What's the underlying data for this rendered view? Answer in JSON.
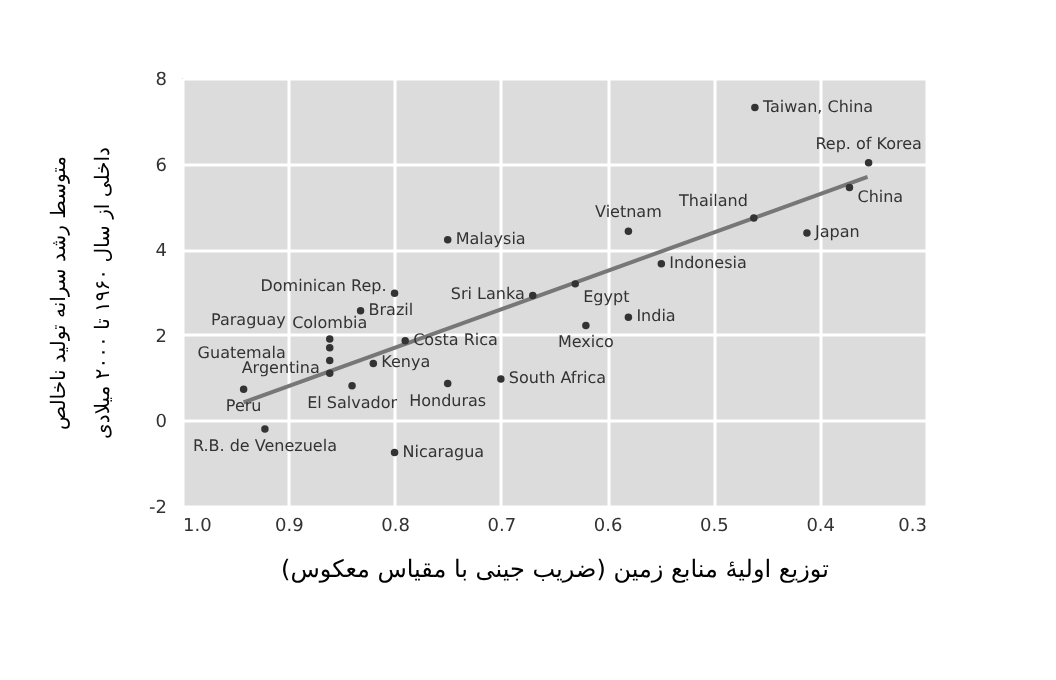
{
  "chart_data": {
    "type": "scatter",
    "xlabel": "توزیع اولیهٔ منابع زمین (ضریب جینی با مقیاس معکوس)",
    "ylabel": "متوسط رشد سرانه تولید ناخالص داخلی از سال ۱۹۶۰ تا ۲۰۰۰ میلادی",
    "xlim": [
      1.0,
      0.3
    ],
    "xticks": [
      {
        "value": 1.0,
        "label": "1.0"
      },
      0.9,
      0.8,
      0.7,
      0.6,
      0.5,
      0.4,
      0.3
    ],
    "ylim": [
      -2,
      8
    ],
    "yticks": [
      -2,
      0,
      2,
      4,
      6,
      8
    ],
    "grid": true,
    "marker": "circle",
    "series": [
      {
        "color": "#333333",
        "x": [
          0.461,
          0.354,
          0.372,
          0.462,
          0.58,
          0.412,
          0.549,
          0.63,
          0.58,
          0.62,
          0.67,
          0.75,
          0.8,
          0.832,
          0.861,
          0.861,
          0.861,
          0.861,
          0.942,
          0.922,
          0.84,
          0.82,
          0.79,
          0.75,
          0.7,
          0.8
        ],
        "values": [
          7.31,
          6.02,
          5.44,
          4.73,
          4.42,
          4.38,
          3.66,
          3.19,
          2.41,
          2.22,
          2.92,
          4.22,
          2.97,
          2.56,
          1.7,
          1.9,
          1.4,
          1.1,
          0.73,
          -0.2,
          0.81,
          1.33,
          1.86,
          0.86,
          0.97,
          -0.75
        ]
      },
      {
        "type": "line",
        "marker": "none",
        "color": "#777777",
        "x": [
          0.942,
          0.355
        ],
        "values": [
          0.42,
          5.69
        ]
      }
    ],
    "annotations": [
      {
        "text": "Taiwan, China",
        "x": 0.461,
        "y": 7.31
      },
      {
        "text": "Rep. of Korea",
        "x": 0.354,
        "y": 6.02
      },
      {
        "text": "China",
        "x": 0.372,
        "y": 5.44
      },
      {
        "text": "Thailand",
        "x": 0.462,
        "y": 4.73
      },
      {
        "text": "Vietnam",
        "x": 0.58,
        "y": 4.42
      },
      {
        "text": "Japan",
        "x": 0.412,
        "y": 4.38
      },
      {
        "text": "Indonesia",
        "x": 0.549,
        "y": 3.66
      },
      {
        "text": "Egypt",
        "x": 0.63,
        "y": 3.19
      },
      {
        "text": "India",
        "x": 0.58,
        "y": 2.41
      },
      {
        "text": "Mexico",
        "x": 0.62,
        "y": 2.22
      },
      {
        "text": "Sri Lanka",
        "x": 0.67,
        "y": 2.92
      },
      {
        "text": "Malaysia",
        "x": 0.75,
        "y": 4.22
      },
      {
        "text": "Dominican Rep.",
        "x": 0.8,
        "y": 2.97
      },
      {
        "text": "Brazil",
        "x": 0.832,
        "y": 2.56
      },
      {
        "text": "Colombia",
        "x": 0.861,
        "y": 1.7
      },
      {
        "text": "Paraguay",
        "x": 0.861,
        "y": 1.9
      },
      {
        "text": "Guatemala",
        "x": 0.861,
        "y": 1.4
      },
      {
        "text": "Argentina",
        "x": 0.861,
        "y": 1.1
      },
      {
        "text": "Peru",
        "x": 0.942,
        "y": 0.73
      },
      {
        "text": "R.B. de Venezuela",
        "x": 0.922,
        "y": -0.2
      },
      {
        "text": "El Salvador",
        "x": 0.84,
        "y": 0.81
      },
      {
        "text": "Kenya",
        "x": 0.82,
        "y": 1.33
      },
      {
        "text": "Costa Rica",
        "x": 0.79,
        "y": 1.86
      },
      {
        "text": "Honduras",
        "x": 0.75,
        "y": 0.86
      },
      {
        "text": "South Africa",
        "x": 0.7,
        "y": 0.97
      },
      {
        "text": "Nicaragua",
        "x": 0.8,
        "y": -0.75
      }
    ]
  }
}
